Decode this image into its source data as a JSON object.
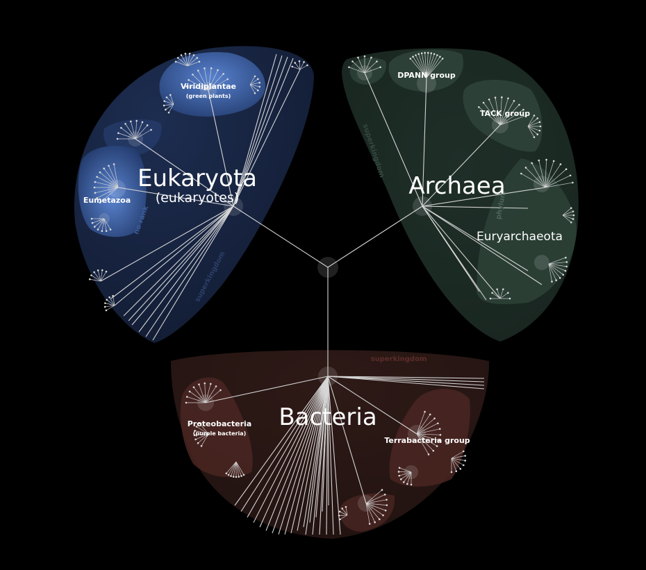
{
  "tree": {
    "superkingdoms": [
      {
        "name": "Eukaryota",
        "subtitle": "(eukaryotes)",
        "rank": "superkingdom",
        "color": "#16233f"
      },
      {
        "name": "Archaea",
        "subtitle": "",
        "rank": "superkingdom",
        "color": "#1d2c26"
      },
      {
        "name": "Bacteria",
        "subtitle": "",
        "rank": "superkingdom",
        "color": "#2a1714"
      }
    ],
    "clades": {
      "viridiplantae": {
        "name": "Viridiplantae",
        "subtitle": "(green plants)"
      },
      "eumetazoa": {
        "name": "Eumetazoa",
        "rank": "no rank"
      },
      "dpann": {
        "name": "DPANN group"
      },
      "tack": {
        "name": "TACK group"
      },
      "euryarchaeota": {
        "name": "Euryarchaeota",
        "rank": "phylum"
      },
      "proteobacteria": {
        "name": "Proteobacteria",
        "subtitle": "(purple bacteria)"
      },
      "terrabacteria": {
        "name": "Terrabacteria group"
      }
    },
    "colors": {
      "background": "#000000",
      "eukaryota_fill": "#16233f",
      "eukaryota_highlight": "#4a6fb8",
      "archaea_fill": "#1d2c26",
      "archaea_inner": "#2f433a",
      "bacteria_fill": "#2a1714",
      "bacteria_inner": "#4a2622",
      "branch": "#d6d6d6"
    }
  }
}
